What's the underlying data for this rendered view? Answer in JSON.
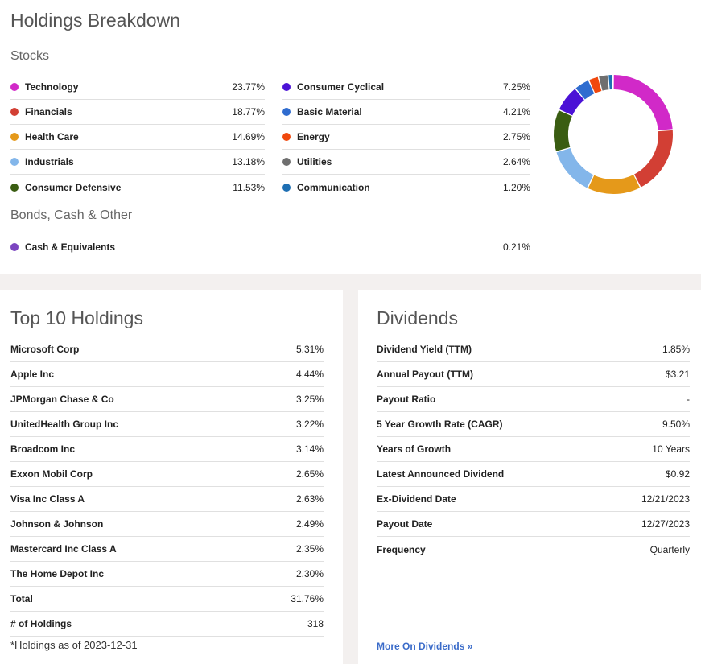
{
  "breakdown": {
    "title": "Holdings Breakdown",
    "stocks_title": "Stocks",
    "bonds_title": "Bonds, Cash & Other",
    "stocks_left": [
      {
        "label": "Technology",
        "value": "23.77%",
        "color": "#d129c8"
      },
      {
        "label": "Financials",
        "value": "18.77%",
        "color": "#d23f34"
      },
      {
        "label": "Health Care",
        "value": "14.69%",
        "color": "#e5991a"
      },
      {
        "label": "Industrials",
        "value": "13.18%",
        "color": "#83b6ea"
      },
      {
        "label": "Consumer Defensive",
        "value": "11.53%",
        "color": "#3a5d12"
      }
    ],
    "stocks_right": [
      {
        "label": "Consumer Cyclical",
        "value": "7.25%",
        "color": "#4b12d6"
      },
      {
        "label": "Basic Material",
        "value": "4.21%",
        "color": "#2f6ccf"
      },
      {
        "label": "Energy",
        "value": "2.75%",
        "color": "#f0480d"
      },
      {
        "label": "Utilities",
        "value": "2.64%",
        "color": "#6f6f6f"
      },
      {
        "label": "Communication",
        "value": "1.20%",
        "color": "#1e6fb3"
      }
    ],
    "other": [
      {
        "label": "Cash & Equivalents",
        "value": "0.21%",
        "color": "#7b45c0"
      }
    ]
  },
  "top10": {
    "title": "Top 10 Holdings",
    "rows": [
      {
        "label": "Microsoft Corp",
        "value": "5.31%"
      },
      {
        "label": "Apple Inc",
        "value": "4.44%"
      },
      {
        "label": "JPMorgan Chase & Co",
        "value": "3.25%"
      },
      {
        "label": "UnitedHealth Group Inc",
        "value": "3.22%"
      },
      {
        "label": "Broadcom Inc",
        "value": "3.14%"
      },
      {
        "label": "Exxon Mobil Corp",
        "value": "2.65%"
      },
      {
        "label": "Visa Inc Class A",
        "value": "2.63%"
      },
      {
        "label": "Johnson & Johnson",
        "value": "2.49%"
      },
      {
        "label": "Mastercard Inc Class A",
        "value": "2.35%"
      },
      {
        "label": "The Home Depot Inc",
        "value": "2.30%"
      },
      {
        "label": "Total",
        "value": "31.76%"
      },
      {
        "label": "# of Holdings",
        "value": "318"
      }
    ],
    "footnote": "*Holdings as of 2023-12-31"
  },
  "dividends": {
    "title": "Dividends",
    "rows": [
      {
        "label": "Dividend Yield (TTM)",
        "value": "1.85%"
      },
      {
        "label": "Annual Payout (TTM)",
        "value": "$3.21"
      },
      {
        "label": "Payout Ratio",
        "value": "-"
      },
      {
        "label": "5 Year Growth Rate (CAGR)",
        "value": "9.50%"
      },
      {
        "label": "Years of Growth",
        "value": "10 Years"
      },
      {
        "label": "Latest Announced Dividend",
        "value": "$0.92"
      },
      {
        "label": "Ex-Dividend Date",
        "value": "12/21/2023"
      },
      {
        "label": "Payout Date",
        "value": "12/27/2023"
      },
      {
        "label": "Frequency",
        "value": "Quarterly"
      }
    ],
    "more_link": "More On Dividends »"
  }
}
